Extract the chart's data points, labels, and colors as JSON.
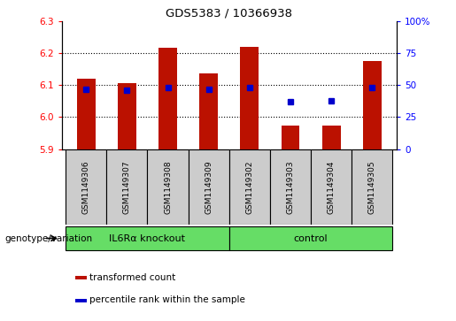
{
  "title": "GDS5383 / 10366938",
  "samples": [
    "GSM1149306",
    "GSM1149307",
    "GSM1149308",
    "GSM1149309",
    "GSM1149302",
    "GSM1149303",
    "GSM1149304",
    "GSM1149305"
  ],
  "transformed_count": [
    6.12,
    6.105,
    6.215,
    6.135,
    6.22,
    5.975,
    5.973,
    6.175
  ],
  "percentile_rank": [
    47,
    46,
    48,
    47,
    48,
    37,
    38,
    48
  ],
  "bar_bottom": 5.9,
  "ylim_left": [
    5.9,
    6.3
  ],
  "ylim_right": [
    0,
    100
  ],
  "yticks_left": [
    5.9,
    6.0,
    6.1,
    6.2,
    6.3
  ],
  "yticks_right": [
    0,
    25,
    50,
    75,
    100
  ],
  "groups": [
    {
      "label": "IL6Rα knockout",
      "indices": [
        0,
        1,
        2,
        3
      ],
      "color": "#66dd66"
    },
    {
      "label": "control",
      "indices": [
        4,
        5,
        6,
        7
      ],
      "color": "#66dd66"
    }
  ],
  "bar_color": "#bb1100",
  "dot_color": "#0000cc",
  "legend_label_bar": "transformed count",
  "legend_label_dot": "percentile rank within the sample",
  "genotype_label": "genotype/variation",
  "tick_label_area_bg": "#cccccc",
  "group_label_bg": "#66dd66",
  "bar_width": 0.45
}
